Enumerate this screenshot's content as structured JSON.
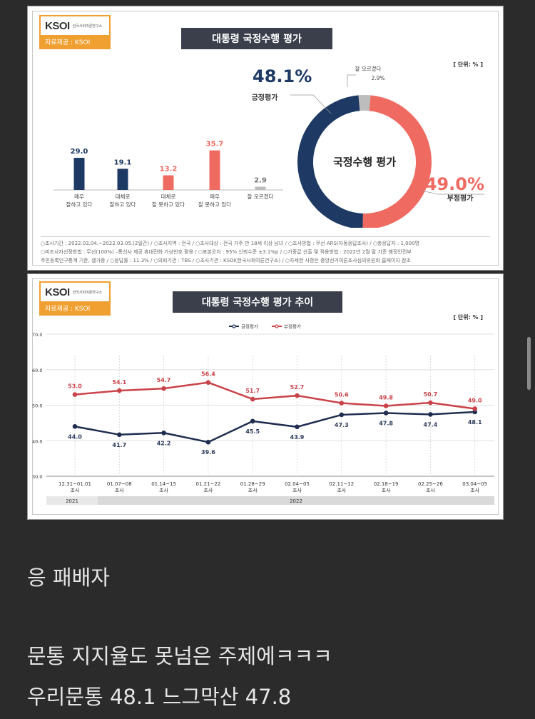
{
  "card1": {
    "logo_text": "KSOI",
    "logo_sub": "한국사회여론연구소",
    "logo_caption": "자료제공 : KSOI",
    "title": "대통령 국정수행 평가",
    "unit": "[ 단위: % ]",
    "footnote_line1": "○조사기간 : 2022.03.04.~2022.03.05.(2일간) / ○조사지역 : 전국 / ○조사대상 : 전국 거주 만 18세 이상 남녀 / ○조사방법 : 무선 ARS(자동응답조사) / ○총응답자 : 1,000명",
    "footnote_line2": "○피조사자선정방법 : 무선(100%) –통신사 제공 휴대전화 가상번호 활용 / ○표본오차 : 95% 신뢰수준 ±3.1%p / ○가중값 산출 및 적용방법 : 2022년 2월 말 기준 행정안전부",
    "footnote_line3": "주민등록인구통계 기준, 셀가중 / ○응답률 : 11.3% / ○의뢰기관 : TBS / ○조사기관 : KSOI(한국사회여론연구소) / ○자세한 사항은 중앙선거여론조사심의위원회 홈페이지 참조"
  },
  "card2": {
    "logo_text": "KSOI",
    "logo_sub": "한국사회여론연구소",
    "logo_caption": "자료제공 : KSOI",
    "title": "대통령 국정수행 평가 추이",
    "unit": "[ 단위: % ]",
    "year_2021": "2021",
    "year_2022": "2022"
  },
  "messages": {
    "line1": "응 패배자",
    "line2": "문통 지지율도 못넘은 주제에ㅋㅋㅋ",
    "line3": "우리문통 48.1 느그막산 47.8"
  },
  "chart_data": [
    {
      "type": "bar",
      "categories": [
        "매우\n잘하고 있다",
        "대체로\n잘하고 있다",
        "대체로\n잘 못하고 있다",
        "매우\n잘 못하고 있다",
        "잘 모르겠다"
      ],
      "values": [
        29.0,
        19.1,
        13.2,
        35.7,
        2.9
      ],
      "colors": [
        "#1e3a64",
        "#1e3a64",
        "#ef6b62",
        "#ef6b62",
        "#bdbdbd"
      ]
    },
    {
      "type": "pie",
      "center_label": "국정수행 평가",
      "slices": [
        {
          "label": "긍정평가",
          "value": 48.1,
          "color": "#1e3a64"
        },
        {
          "label": "부정평가",
          "value": 49.0,
          "color": "#ef6b62"
        },
        {
          "label": "잘 모르겠다",
          "value": 2.9,
          "color": "#bdbdbd"
        }
      ]
    },
    {
      "type": "line",
      "categories": [
        "12.31~01.01\n조사",
        "01.07~08\n조사",
        "01.14~15\n조사",
        "01.21~22\n조사",
        "01.28~29\n조사",
        "02.04~05\n조사",
        "02.11~12\n조사",
        "02.18~19\n조사",
        "02.25~26\n조사",
        "03.04~05\n조사"
      ],
      "series": [
        {
          "name": "긍정평가",
          "values": [
            44.0,
            41.7,
            42.2,
            39.6,
            45.5,
            43.9,
            47.3,
            47.8,
            47.4,
            48.1
          ],
          "color": "#1e2d4f"
        },
        {
          "name": "부정평가",
          "values": [
            53.0,
            54.1,
            54.7,
            56.4,
            51.7,
            52.7,
            50.6,
            49.8,
            50.7,
            49.0
          ],
          "color": "#c9444a"
        }
      ],
      "ylim": [
        30,
        70
      ],
      "yticks": [
        "30.0",
        "40.0",
        "50.0",
        "60.0",
        "70.0"
      ],
      "legend": "top-center"
    }
  ]
}
